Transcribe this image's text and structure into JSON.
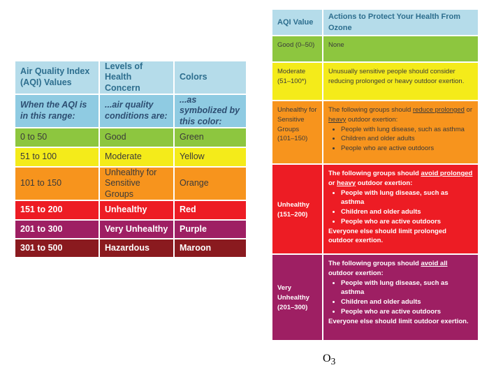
{
  "left_table": {
    "header": [
      "Air Quality Index (AQI) Values",
      "Levels of Health Concern",
      "Colors"
    ],
    "subheader": [
      "When the AQI is in this range:",
      "...air quality conditions are:",
      "...as symbolized by this color:"
    ],
    "rows": [
      [
        "0 to 50",
        "Good",
        "Green"
      ],
      [
        "51 to 100",
        "Moderate",
        "Yellow"
      ],
      [
        "101 to 150",
        "Unhealthy for Sensitive Groups",
        "Orange"
      ],
      [
        "151 to 200",
        "Unhealthy",
        "Red"
      ],
      [
        "201 to 300",
        "Very Unhealthy",
        "Purple"
      ],
      [
        "301 to 500",
        "Hazardous",
        "Maroon"
      ]
    ]
  },
  "right_table": {
    "header": [
      "AQI Value",
      "Actions to Protect Your Health From Ozone"
    ],
    "rows": [
      {
        "label": "Good (0–50)",
        "intro": [
          "None"
        ]
      },
      {
        "label": "Moderate (51–100*)",
        "intro": [
          "Unusually sensitive people should consider reducing prolonged or heavy outdoor exertion."
        ]
      },
      {
        "label": "Unhealthy for Sensitive Groups (101–150)",
        "intro": [
          "The following groups should ",
          {
            "text": "reduce prolonged",
            "underline": true
          },
          " or ",
          {
            "text": "heavy",
            "underline": true
          },
          " outdoor exertion:"
        ],
        "bullets": [
          "People with lung disease, such as asthma",
          "Children and older adults",
          "People who are active outdoors"
        ]
      },
      {
        "label": "Unhealthy (151–200)",
        "intro": [
          "The following groups should ",
          {
            "text": "avoid prolonged",
            "underline": true
          },
          " or ",
          {
            "text": "heavy",
            "underline": true
          },
          " outdoor exertion:"
        ],
        "bullets": [
          "People with lung disease, such as asthma",
          "Children and older adults",
          "People who are active outdoors"
        ],
        "outro": "Everyone else should limit prolonged outdoor exertion."
      },
      {
        "label": "Very Unhealthy (201–300)",
        "intro": [
          "The following groups should ",
          {
            "text": "avoid all",
            "underline": true
          },
          " outdoor exertion:"
        ],
        "bullets": [
          "People with lung disease, such as asthma",
          "Children and older adults",
          "People who are active outdoors"
        ],
        "outro": "Everyone else should limit outdoor exertion."
      }
    ]
  },
  "caption": {
    "base": "O",
    "subscript": "3"
  }
}
